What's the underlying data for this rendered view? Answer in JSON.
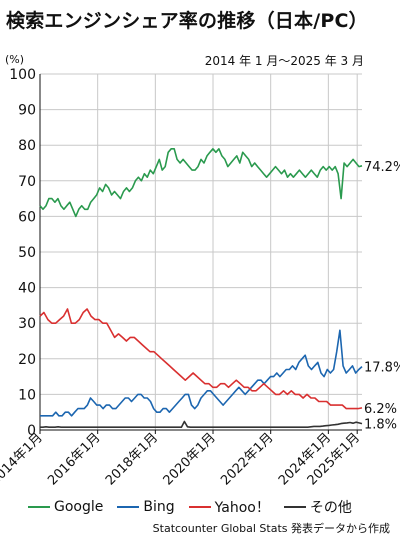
{
  "title": "検索エンジンシェア率の推移（日本/PC）",
  "subtitle": "2014 年 1 月～2025 年 3 月",
  "unit": "(%)",
  "source": "Statcounter Global Stats 発表データから作成",
  "chart_data": {
    "type": "line",
    "ylim": [
      0,
      100
    ],
    "yticks": [
      0,
      10,
      20,
      30,
      40,
      50,
      60,
      70,
      80,
      90,
      100
    ],
    "grid": true,
    "legend_position": "bottom",
    "x_tick_labels": [
      "2014年1月",
      "2016年1月",
      "2018年1月",
      "2020年1月",
      "2022年1月",
      "2024年1月",
      "2025年1月"
    ],
    "x_tick_months": [
      0,
      24,
      48,
      72,
      96,
      120,
      132
    ],
    "x_range_months": [
      0,
      134
    ],
    "series": [
      {
        "name": "Google",
        "color": "#2a9a4e",
        "end_label": "74.2%",
        "values": [
          63,
          62,
          63,
          65,
          65,
          64,
          65,
          63,
          62,
          63,
          64,
          62,
          60,
          62,
          63,
          62,
          62,
          64,
          65,
          66,
          68,
          67,
          69,
          68,
          66,
          67,
          66,
          65,
          67,
          68,
          67,
          68,
          70,
          71,
          70,
          72,
          71,
          73,
          72,
          74,
          76,
          73,
          74,
          78,
          79,
          79,
          76,
          75,
          76,
          75,
          74,
          73,
          73,
          74,
          76,
          75,
          77,
          78,
          79,
          78,
          79,
          77,
          76,
          74,
          75,
          76,
          77,
          75,
          78,
          77,
          76,
          74,
          75,
          74,
          73,
          72,
          71,
          72,
          73,
          74,
          73,
          72,
          73,
          71,
          72,
          71,
          72,
          73,
          72,
          71,
          72,
          73,
          72,
          71,
          73,
          74,
          73,
          74,
          73,
          74,
          72,
          65,
          75,
          74,
          75,
          76,
          75,
          74,
          74.2
        ]
      },
      {
        "name": "Bing",
        "color": "#1c66b0",
        "end_label": "17.8%",
        "values": [
          4,
          4,
          4,
          4,
          4,
          5,
          4,
          4,
          5,
          5,
          4,
          5,
          6,
          6,
          6,
          7,
          9,
          8,
          7,
          7,
          6,
          7,
          7,
          6,
          6,
          7,
          8,
          9,
          9,
          8,
          9,
          10,
          10,
          9,
          9,
          8,
          6,
          5,
          5,
          6,
          6,
          5,
          6,
          7,
          8,
          9,
          10,
          10,
          7,
          6,
          7,
          9,
          10,
          11,
          11,
          10,
          9,
          8,
          7,
          8,
          9,
          10,
          11,
          12,
          11,
          10,
          11,
          12,
          13,
          14,
          14,
          13,
          14,
          15,
          15,
          16,
          15,
          16,
          17,
          17,
          18,
          17,
          19,
          20,
          21,
          18,
          17,
          18,
          19,
          16,
          15,
          17,
          16,
          17,
          22,
          28,
          18,
          16,
          17,
          18,
          16,
          17,
          17.8
        ]
      },
      {
        "name": "Yahoo！",
        "color": "#d93030",
        "end_label": "6.2%",
        "values": [
          32,
          33,
          31,
          30,
          30,
          31,
          32,
          34,
          30,
          30,
          31,
          33,
          34,
          32,
          31,
          31,
          30,
          30,
          28,
          26,
          27,
          26,
          25,
          26,
          26,
          25,
          24,
          23,
          22,
          22,
          21,
          20,
          19,
          18,
          17,
          16,
          15,
          14,
          15,
          16,
          15,
          14,
          13,
          13,
          12,
          12,
          13,
          13,
          12,
          13,
          14,
          13,
          12,
          12,
          11,
          11,
          12,
          13,
          12,
          11,
          10,
          10,
          11,
          10,
          11,
          10,
          10,
          9,
          10,
          9,
          9,
          8,
          8,
          8,
          7,
          7,
          7,
          7,
          6,
          6,
          6,
          6,
          6.2
        ]
      },
      {
        "name": "その他",
        "color": "#333333",
        "end_label": "1.8%",
        "values": [
          0.8,
          0.8,
          0.9,
          0.8,
          0.8,
          0.8,
          0.9,
          0.8,
          0.8,
          0.8,
          0.8,
          0.8,
          0.8,
          0.8,
          0.8,
          0.8,
          0.8,
          0.8,
          0.8,
          0.8,
          0.8,
          0.8,
          0.8,
          0.8,
          0.8,
          0.8,
          0.8,
          0.8,
          0.8,
          0.8,
          0.8,
          0.8,
          0.8,
          0.8,
          0.8,
          0.8,
          0.8,
          0.8,
          0.8,
          0.8,
          0.8,
          0.8,
          0.8,
          0.8,
          0.8,
          0.8,
          0.8,
          0.8,
          2.4,
          0.9,
          0.8,
          0.8,
          0.8,
          0.8,
          0.8,
          0.8,
          0.8,
          0.8,
          0.8,
          0.8,
          0.8,
          0.8,
          0.8,
          0.8,
          0.8,
          0.8,
          0.8,
          0.8,
          0.8,
          0.8,
          0.8,
          0.8,
          0.8,
          0.8,
          0.8,
          0.8,
          0.8,
          0.8,
          0.8,
          0.8,
          0.8,
          0.8,
          0.8,
          0.8,
          0.8,
          0.8,
          0.8,
          0.8,
          0.8,
          0.8,
          0.9,
          1,
          1,
          1,
          1.1,
          1.2,
          1.3,
          1.4,
          1.5,
          1.6,
          1.8,
          1.9,
          2,
          2.1,
          1.9,
          2.2,
          2,
          1.8
        ]
      }
    ]
  }
}
